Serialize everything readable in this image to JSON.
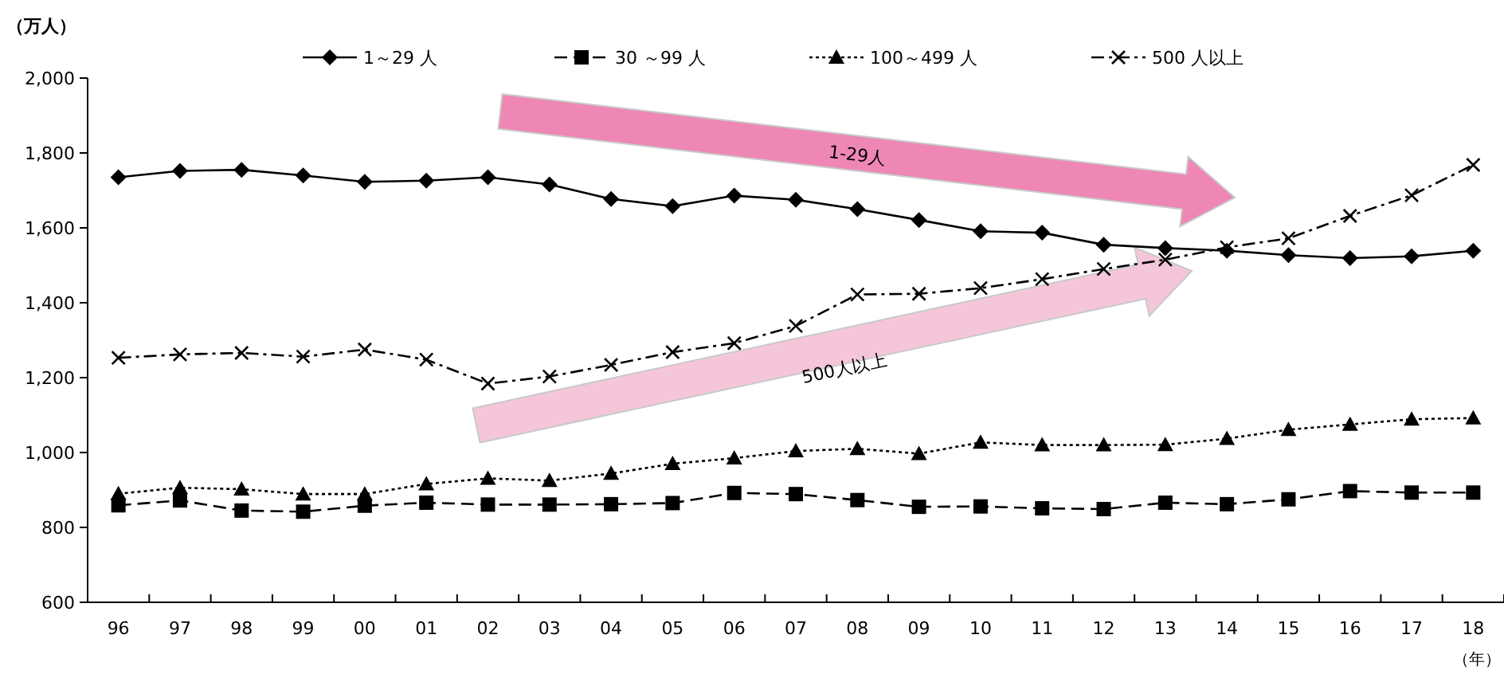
{
  "chart_data": {
    "type": "line",
    "ylabel": "（万人）",
    "xlabel": "（年）",
    "categories": [
      "96",
      "97",
      "98",
      "99",
      "00",
      "01",
      "02",
      "03",
      "04",
      "05",
      "06",
      "07",
      "08",
      "09",
      "10",
      "11",
      "12",
      "13",
      "14",
      "15",
      "16",
      "17",
      "18"
    ],
    "ylim": [
      600,
      2000
    ],
    "yticks": [
      {
        "value": 600,
        "label": "600"
      },
      {
        "value": 800,
        "label": "800"
      },
      {
        "value": 1000,
        "label": "1,000"
      },
      {
        "value": 1200,
        "label": "1,200"
      },
      {
        "value": 1400,
        "label": "1,400"
      },
      {
        "value": 1600,
        "label": "1,600"
      },
      {
        "value": 1800,
        "label": "1,800"
      },
      {
        "value": 2000,
        "label": "2,000"
      }
    ],
    "grid": false,
    "legend": "top",
    "series": [
      {
        "name": "1～29 人",
        "color": "#000000",
        "marker": "diamond",
        "line_style": "solid",
        "values": [
          1735,
          1752,
          1755,
          1740,
          1723,
          1726,
          1735,
          1716,
          1677,
          1658,
          1686,
          1675,
          1650,
          1621,
          1591,
          1587,
          1555,
          1546,
          1539,
          1527,
          1519,
          1524,
          1539
        ]
      },
      {
        "name": "30 ～99 人",
        "color": "#000000",
        "marker": "square",
        "line_style": "dashed",
        "values": [
          859,
          872,
          845,
          842,
          858,
          866,
          861,
          861,
          862,
          865,
          892,
          889,
          873,
          855,
          856,
          851,
          849,
          866,
          862,
          875,
          897,
          893,
          893
        ]
      },
      {
        "name": "100～499 人",
        "color": "#000000",
        "marker": "triangle",
        "line_style": "dotted",
        "values": [
          890,
          906,
          902,
          889,
          889,
          916,
          931,
          925,
          944,
          970,
          985,
          1004,
          1010,
          997,
          1027,
          1020,
          1020,
          1021,
          1037,
          1061,
          1075,
          1089,
          1092
        ]
      },
      {
        "name": "500 人以上",
        "color": "#000000",
        "marker": "cross",
        "line_style": "dashdot",
        "values": [
          1253,
          1262,
          1266,
          1256,
          1275,
          1248,
          1184,
          1203,
          1234,
          1268,
          1292,
          1338,
          1422,
          1424,
          1439,
          1463,
          1490,
          1515,
          1548,
          1572,
          1632,
          1687,
          1768
        ]
      }
    ],
    "annotations": [
      "1-29人",
      "500人以上"
    ]
  }
}
